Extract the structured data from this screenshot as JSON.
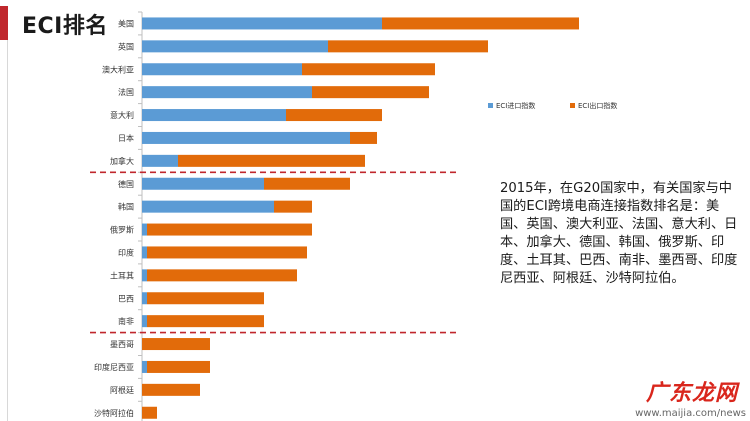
{
  "header": {
    "title": "ECI排名"
  },
  "description": "2015年，在G20国家中，有关国家与中国的ECI跨境电商连接指数排名是：美国、英国、澳大利亚、法国、意大利、日本、加拿大、德国、韩国、俄罗斯、印度、土耳其、巴西、南非、墨西哥、印度尼西亚、阿根廷、沙特阿拉伯。",
  "watermark": {
    "title": "广东龙网",
    "url": "www.maijia.com/news"
  },
  "colors": {
    "import": "#5b9bd5",
    "export": "#e26b0a",
    "divider": "#c0272d",
    "accent": "#c0272d"
  },
  "chart_data": {
    "type": "bar",
    "orientation": "horizontal",
    "stacked": true,
    "categories": [
      "美国",
      "英国",
      "澳大利亚",
      "法国",
      "意大利",
      "日本",
      "加拿大",
      "德国",
      "韩国",
      "俄罗斯",
      "印度",
      "土耳其",
      "巴西",
      "南非",
      "墨西哥",
      "印度尼西亚",
      "阿根廷",
      "沙特阿拉伯"
    ],
    "series": [
      {
        "name": "ECI进口指数",
        "values": [
          240,
          186,
          160,
          170,
          144,
          208,
          36,
          122,
          132,
          5,
          5,
          5,
          5,
          5,
          0,
          5,
          0,
          0
        ]
      },
      {
        "name": "ECI出口指数",
        "values": [
          197,
          160,
          133,
          117,
          96,
          27,
          187,
          86,
          38,
          165,
          160,
          150,
          117,
          117,
          68,
          63,
          58,
          15
        ]
      }
    ],
    "xlim": [
      0,
      450
    ],
    "grid": false,
    "legend": "right",
    "dividers_after": [
      "加拿大",
      "南非"
    ]
  }
}
